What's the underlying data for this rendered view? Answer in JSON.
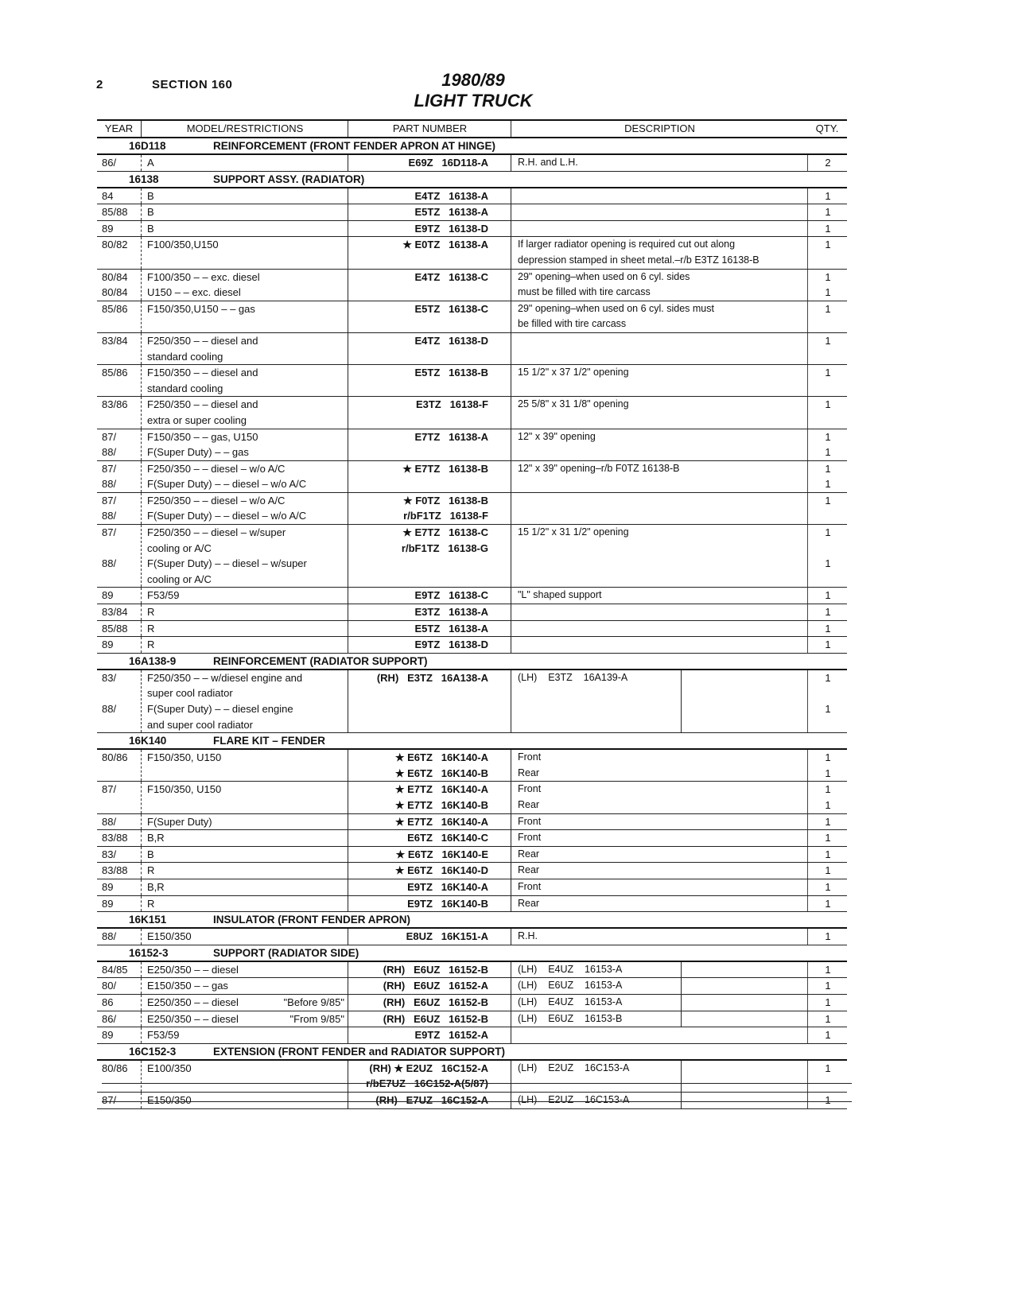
{
  "page_number": "2",
  "section": "SECTION 160",
  "title_line1": "1980/89",
  "title_line2": "LIGHT TRUCK",
  "columns": {
    "year": "YEAR",
    "model": "MODEL/RESTRICTIONS",
    "part": "PART NUMBER",
    "description": "DESCRIPTION",
    "qty": "QTY."
  },
  "rows": [
    {
      "type": "section",
      "code": "16D118",
      "title": "REINFORCEMENT (FRONT FENDER APRON AT HINGE)"
    },
    {
      "type": "item",
      "year": [
        "86/"
      ],
      "model": [
        "A"
      ],
      "part": [
        "E69Z   16D118-A"
      ],
      "desc": [
        "R.H. and L.H."
      ],
      "qty": [
        "2"
      ]
    },
    {
      "type": "section",
      "code": "16138",
      "title": "SUPPORT ASSY. (RADIATOR)"
    },
    {
      "type": "item",
      "year": [
        "84"
      ],
      "model": [
        "B"
      ],
      "part": [
        "E4TZ   16138-A"
      ],
      "desc": [
        ""
      ],
      "qty": [
        "1"
      ]
    },
    {
      "type": "item",
      "year": [
        "85/88"
      ],
      "model": [
        "B"
      ],
      "part": [
        "E5TZ   16138-A"
      ],
      "desc": [
        ""
      ],
      "qty": [
        "1"
      ]
    },
    {
      "type": "item",
      "year": [
        "89"
      ],
      "model": [
        "B"
      ],
      "part": [
        "E9TZ   16138-D"
      ],
      "desc": [
        ""
      ],
      "qty": [
        "1"
      ]
    },
    {
      "type": "item",
      "year": [
        "80/82",
        ""
      ],
      "model": [
        "F100/350,U150",
        ""
      ],
      "part": [
        "★ E0TZ   16138-A"
      ],
      "desc": [
        "If larger radiator opening is required cut out along",
        "depression stamped in sheet metal.–r/b E3TZ 16138-B"
      ],
      "qty": [
        "1"
      ]
    },
    {
      "type": "item",
      "year": [
        "80/84",
        "80/84"
      ],
      "model": [
        "F100/350 – – exc. diesel",
        "U150 – – exc. diesel"
      ],
      "part": [
        "E4TZ   16138-C"
      ],
      "desc": [
        "29\" opening–when used on 6 cyl. sides",
        "must be filled with tire carcass"
      ],
      "qty": [
        "1",
        "1"
      ]
    },
    {
      "type": "item",
      "year": [
        "85/86",
        ""
      ],
      "model": [
        "F150/350,U150 – – gas",
        ""
      ],
      "part": [
        "E5TZ   16138-C"
      ],
      "desc": [
        "29\" opening–when used on 6 cyl. sides must",
        "be filled with tire carcass"
      ],
      "qty": [
        "1"
      ]
    },
    {
      "type": "item",
      "year": [
        "83/84",
        ""
      ],
      "model": [
        "F250/350 – – diesel and",
        "standard cooling"
      ],
      "part": [
        "E4TZ   16138-D"
      ],
      "desc": [
        ""
      ],
      "qty": [
        "1"
      ]
    },
    {
      "type": "item",
      "year": [
        "85/86",
        ""
      ],
      "model": [
        "F150/350 – – diesel and",
        "standard cooling"
      ],
      "part": [
        "E5TZ   16138-B"
      ],
      "desc": [
        "15 1/2\" x 37 1/2\" opening"
      ],
      "qty": [
        "1"
      ]
    },
    {
      "type": "item",
      "year": [
        "83/86",
        ""
      ],
      "model": [
        "F250/350 – – diesel and",
        "extra or super cooling"
      ],
      "part": [
        "E3TZ   16138-F"
      ],
      "desc": [
        "25 5/8\" x 31 1/8\" opening"
      ],
      "qty": [
        "1"
      ]
    },
    {
      "type": "item",
      "year": [
        "87/",
        "88/"
      ],
      "model": [
        "F150/350 – – gas, U150",
        "F(Super Duty) – – gas"
      ],
      "part": [
        "E7TZ   16138-A"
      ],
      "desc": [
        "12\" x 39\" opening"
      ],
      "qty": [
        "1",
        "1"
      ]
    },
    {
      "type": "item",
      "year": [
        "87/",
        "88/"
      ],
      "model": [
        "F250/350 – – diesel – w/o A/C",
        "F(Super Duty) – – diesel – w/o A/C"
      ],
      "part": [
        "★ E7TZ   16138-B"
      ],
      "desc": [
        "12\" x 39\" opening–r/b F0TZ 16138-B"
      ],
      "qty": [
        "1",
        "1"
      ]
    },
    {
      "type": "item",
      "year": [
        "87/",
        "88/"
      ],
      "model": [
        "F250/350 – – diesel – w/o A/C",
        "F(Super Duty) – – diesel – w/o A/C"
      ],
      "part": [
        "★ F0TZ   16138-B",
        "r/bF1TZ   16138-F"
      ],
      "desc": [
        ""
      ],
      "qty": [
        "1"
      ]
    },
    {
      "type": "item",
      "year": [
        "87/",
        "",
        "88/",
        ""
      ],
      "model": [
        "F250/350 – – diesel – w/super",
        "cooling or A/C",
        "F(Super Duty) – – diesel – w/super",
        "cooling or A/C"
      ],
      "part": [
        "★ E7TZ   16138-C",
        "r/bF1TZ   16138-G"
      ],
      "desc": [
        "15 1/2\" x 31 1/2\" opening"
      ],
      "qty": [
        "1",
        "",
        "1"
      ]
    },
    {
      "type": "item",
      "year": [
        "89"
      ],
      "model": [
        "F53/59"
      ],
      "part": [
        "E9TZ   16138-C"
      ],
      "desc": [
        "\"L\" shaped support"
      ],
      "qty": [
        "1"
      ]
    },
    {
      "type": "item",
      "year": [
        "83/84"
      ],
      "model": [
        "R"
      ],
      "part": [
        "E3TZ   16138-A"
      ],
      "desc": [
        ""
      ],
      "qty": [
        "1"
      ]
    },
    {
      "type": "item",
      "year": [
        "85/88"
      ],
      "model": [
        "R"
      ],
      "part": [
        "E5TZ   16138-A"
      ],
      "desc": [
        ""
      ],
      "qty": [
        "1"
      ]
    },
    {
      "type": "item",
      "year": [
        "89"
      ],
      "model": [
        "R"
      ],
      "part": [
        "E9TZ   16138-D"
      ],
      "desc": [
        ""
      ],
      "qty": [
        "1"
      ]
    },
    {
      "type": "section",
      "code": "16A138-9",
      "title": "REINFORCEMENT (RADIATOR SUPPORT)"
    },
    {
      "type": "item",
      "year": [
        "83/",
        "",
        "88/",
        ""
      ],
      "model": [
        "F250/350 – – w/diesel engine and",
        "super cool radiator",
        "F(Super Duty) – – diesel engine",
        "and super cool radiator"
      ],
      "part": [
        "(RH)   E3TZ   16A138-A"
      ],
      "desc": [
        "(LH)    E3TZ    16A139-A"
      ],
      "qty": [
        "1",
        "",
        "1"
      ]
    },
    {
      "type": "section",
      "code": "16K140",
      "title": "FLARE KIT – FENDER"
    },
    {
      "type": "item",
      "year": [
        "80/86",
        ""
      ],
      "model": [
        "F150/350, U150",
        ""
      ],
      "part": [
        "★ E6TZ   16K140-A",
        "★ E6TZ   16K140-B"
      ],
      "desc": [
        "Front",
        "Rear"
      ],
      "qty": [
        "1",
        "1"
      ]
    },
    {
      "type": "item",
      "year": [
        "87/",
        ""
      ],
      "model": [
        "F150/350, U150",
        ""
      ],
      "part": [
        "★ E7TZ   16K140-A",
        "★ E7TZ   16K140-B"
      ],
      "desc": [
        "Front",
        "Rear"
      ],
      "qty": [
        "1",
        "1"
      ]
    },
    {
      "type": "item",
      "year": [
        "88/"
      ],
      "model": [
        "F(Super Duty)"
      ],
      "part": [
        "★ E7TZ   16K140-A"
      ],
      "desc": [
        "Front"
      ],
      "qty": [
        "1"
      ]
    },
    {
      "type": "item",
      "year": [
        "83/88"
      ],
      "model": [
        "B,R"
      ],
      "part": [
        "E6TZ   16K140-C"
      ],
      "desc": [
        "Front"
      ],
      "qty": [
        "1"
      ]
    },
    {
      "type": "item",
      "year": [
        "83/"
      ],
      "model": [
        "B"
      ],
      "part": [
        "★ E6TZ   16K140-E"
      ],
      "desc": [
        "Rear"
      ],
      "qty": [
        "1"
      ]
    },
    {
      "type": "item",
      "year": [
        "83/88"
      ],
      "model": [
        "R"
      ],
      "part": [
        "★ E6TZ   16K140-D"
      ],
      "desc": [
        "Rear"
      ],
      "qty": [
        "1"
      ]
    },
    {
      "type": "item",
      "year": [
        "89"
      ],
      "model": [
        "B,R"
      ],
      "part": [
        "E9TZ   16K140-A"
      ],
      "desc": [
        "Front"
      ],
      "qty": [
        "1"
      ]
    },
    {
      "type": "item",
      "year": [
        "89"
      ],
      "model": [
        "R"
      ],
      "part": [
        "E9TZ   16K140-B"
      ],
      "desc": [
        "Rear"
      ],
      "qty": [
        "1"
      ]
    },
    {
      "type": "section",
      "code": "16K151",
      "title": "INSULATOR (FRONT FENDER APRON)"
    },
    {
      "type": "item",
      "year": [
        "88/"
      ],
      "model": [
        "E150/350"
      ],
      "part": [
        "E8UZ   16K151-A"
      ],
      "desc": [
        "R.H."
      ],
      "qty": [
        "1"
      ]
    },
    {
      "type": "section",
      "code": "16152-3",
      "title": "SUPPORT (RADIATOR SIDE)"
    },
    {
      "type": "item",
      "year": [
        "84/85"
      ],
      "model": [
        "E250/350 – – diesel"
      ],
      "part": [
        "(RH)   E6UZ   16152-B"
      ],
      "desc": [
        "(LH)    E4UZ    16153-A"
      ],
      "qty": [
        "1"
      ]
    },
    {
      "type": "item",
      "year": [
        "80/"
      ],
      "model": [
        "E150/350 – – gas"
      ],
      "part": [
        "(RH)   E6UZ   16152-A"
      ],
      "desc": [
        "(LH)    E6UZ    16153-A"
      ],
      "qty": [
        "1"
      ]
    },
    {
      "type": "item",
      "year": [
        "86"
      ],
      "model": [
        "E250/350 – – diesel"
      ],
      "note": "\"Before 9/85\"",
      "part": [
        "(RH)   E6UZ   16152-B"
      ],
      "desc": [
        "(LH)    E4UZ    16153-A"
      ],
      "qty": [
        "1"
      ]
    },
    {
      "type": "item",
      "year": [
        "86/"
      ],
      "model": [
        "E250/350 – – diesel"
      ],
      "note": "\"From 9/85\"",
      "part": [
        "(RH)   E6UZ   16152-B"
      ],
      "desc": [
        "(LH)    E6UZ    16153-B"
      ],
      "qty": [
        "1"
      ]
    },
    {
      "type": "item",
      "year": [
        "89"
      ],
      "model": [
        "F53/59"
      ],
      "part": [
        "E9TZ   16152-A"
      ],
      "desc": [
        ""
      ],
      "qty": [
        "1"
      ]
    },
    {
      "type": "section",
      "code": "16C152-3",
      "title": "EXTENSION (FRONT FENDER and RADIATOR SUPPORT)"
    },
    {
      "type": "item",
      "year": [
        "80/86",
        ""
      ],
      "model": [
        "E100/350",
        ""
      ],
      "part": [
        "(RH) ★ E2UZ   16C152-A",
        "r/bE7UZ   16C152-A(5/87)"
      ],
      "desc": [
        "(LH)    E2UZ    16C153-A"
      ],
      "qty": [
        "1"
      ]
    },
    {
      "type": "item",
      "year": [
        "87/"
      ],
      "model": [
        "E150/350"
      ],
      "part": [
        "(RH)   E7UZ   16C152-A"
      ],
      "desc": [
        "(LH)    E2UZ    16C153-A"
      ],
      "qty": [
        "1"
      ]
    }
  ]
}
